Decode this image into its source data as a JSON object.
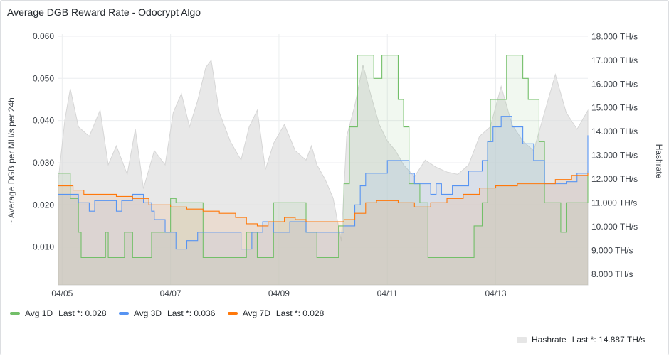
{
  "panel": {
    "title": "Average DGB Reward Rate - Odocrypt Algo"
  },
  "chart_data": {
    "type": "line",
    "title": "Average DGB Reward Rate - Odocrypt Algo",
    "x_ticks": [
      "04/05",
      "04/07",
      "04/09",
      "04/11",
      "04/13"
    ],
    "x_range_days": [
      4.93,
      14.7
    ],
    "y_left": {
      "label": "~ Average DGB per MH/s per 24h",
      "ticks": [
        "0.010",
        "0.020",
        "0.030",
        "0.040",
        "0.050",
        "0.060"
      ],
      "range": [
        0.001,
        0.0605
      ]
    },
    "y_right": {
      "label": "Hashrate",
      "ticks": [
        "8.000 TH/s",
        "9.000 TH/s",
        "10.000 TH/s",
        "11.000 TH/s",
        "12.000 TH/s",
        "13.000 TH/s",
        "14.000 TH/s",
        "15.000 TH/s",
        "16.000 TH/s",
        "17.000 TH/s",
        "18.000 TH/s"
      ],
      "range": [
        7.55,
        18.1
      ]
    },
    "grid": true,
    "series": [
      {
        "name": "Avg 1D",
        "axis": "left",
        "color": "#73bf69",
        "x": [
          4.93,
          5.1,
          5.15,
          5.3,
          5.35,
          5.55,
          5.8,
          5.85,
          6.1,
          6.15,
          6.25,
          6.3,
          6.6,
          6.65,
          7.0,
          7.1,
          7.6,
          7.65,
          8.0,
          8.2,
          8.4,
          8.5,
          8.6,
          8.7,
          8.9,
          9.3,
          9.5,
          9.7,
          9.95,
          10.1,
          10.2,
          10.3,
          10.45,
          10.55,
          10.7,
          10.75,
          10.9,
          11.0,
          11.2,
          11.3,
          11.4,
          11.5,
          11.6,
          11.75,
          12.0,
          12.3,
          12.4,
          12.6,
          12.75,
          12.85,
          12.9,
          13.1,
          13.2,
          13.35,
          13.45,
          13.5,
          13.6,
          13.75,
          13.8,
          13.9,
          14.2,
          14.3,
          14.5,
          14.7
        ],
        "values": [
          0.0275,
          0.0275,
          0.0215,
          0.0135,
          0.0075,
          0.0075,
          0.0135,
          0.0075,
          0.0075,
          0.0135,
          0.0135,
          0.0075,
          0.0075,
          0.0135,
          0.0215,
          0.0205,
          0.0075,
          0.0075,
          0.0075,
          0.0075,
          0.0135,
          0.0135,
          0.0075,
          0.0075,
          0.0205,
          0.0205,
          0.0135,
          0.0075,
          0.0075,
          0.015,
          0.025,
          0.0385,
          0.0555,
          0.0555,
          0.0555,
          0.05,
          0.0555,
          0.0555,
          0.045,
          0.0385,
          0.025,
          0.025,
          0.0205,
          0.0075,
          0.0075,
          0.0075,
          0.0075,
          0.015,
          0.0205,
          0.035,
          0.045,
          0.045,
          0.0555,
          0.0555,
          0.0555,
          0.05,
          0.045,
          0.045,
          0.035,
          0.0205,
          0.0135,
          0.0205,
          0.0205,
          0.028
        ]
      },
      {
        "name": "Avg 3D",
        "axis": "left",
        "color": "#5794f2",
        "x": [
          4.93,
          5.3,
          5.5,
          5.6,
          6.0,
          6.1,
          6.3,
          6.5,
          6.65,
          6.7,
          6.9,
          7.1,
          7.3,
          7.5,
          7.9,
          8.3,
          8.5,
          8.7,
          8.9,
          9.2,
          9.5,
          10.0,
          10.2,
          10.4,
          10.5,
          10.6,
          10.7,
          11.0,
          11.4,
          11.5,
          11.8,
          11.9,
          12.0,
          12.2,
          12.5,
          12.75,
          12.85,
          12.95,
          13.1,
          13.3,
          13.5,
          13.7,
          13.9,
          14.3,
          14.5,
          14.7
        ],
        "values": [
          0.0225,
          0.0205,
          0.0185,
          0.021,
          0.0185,
          0.021,
          0.0225,
          0.0205,
          0.0185,
          0.0165,
          0.0135,
          0.0095,
          0.0115,
          0.0135,
          0.0135,
          0.0095,
          0.0135,
          0.016,
          0.0135,
          0.016,
          0.0135,
          0.0135,
          0.015,
          0.02,
          0.0245,
          0.0275,
          0.0275,
          0.0305,
          0.0275,
          0.025,
          0.0225,
          0.025,
          0.0225,
          0.0245,
          0.028,
          0.0305,
          0.035,
          0.0385,
          0.041,
          0.0385,
          0.0345,
          0.0305,
          0.025,
          0.0255,
          0.0275,
          0.0365
        ]
      },
      {
        "name": "Avg 7D",
        "axis": "left",
        "color": "#ff780a",
        "x": [
          4.93,
          5.2,
          5.4,
          5.7,
          6.0,
          6.3,
          6.6,
          7.0,
          7.3,
          7.6,
          7.9,
          8.2,
          8.4,
          8.6,
          8.8,
          9.1,
          9.3,
          9.5,
          9.8,
          10.0,
          10.2,
          10.4,
          10.6,
          10.8,
          11.0,
          11.2,
          11.5,
          11.8,
          12.1,
          12.4,
          12.7,
          13.0,
          13.4,
          13.8,
          14.1,
          14.4,
          14.7
        ],
        "values": [
          0.0245,
          0.0235,
          0.0225,
          0.0225,
          0.022,
          0.0215,
          0.02,
          0.0195,
          0.019,
          0.0185,
          0.018,
          0.017,
          0.0155,
          0.015,
          0.016,
          0.017,
          0.0165,
          0.016,
          0.016,
          0.016,
          0.0165,
          0.018,
          0.0205,
          0.021,
          0.021,
          0.0205,
          0.0195,
          0.0205,
          0.0215,
          0.0225,
          0.024,
          0.0245,
          0.025,
          0.025,
          0.026,
          0.027,
          0.0275
        ]
      },
      {
        "name": "Hashrate",
        "axis": "right",
        "color": "#e6e6e6",
        "x": [
          4.93,
          5.05,
          5.15,
          5.3,
          5.5,
          5.7,
          5.85,
          6.0,
          6.2,
          6.35,
          6.5,
          6.7,
          6.9,
          7.05,
          7.2,
          7.35,
          7.5,
          7.65,
          7.75,
          7.9,
          8.1,
          8.3,
          8.45,
          8.6,
          8.75,
          8.9,
          9.1,
          9.3,
          9.5,
          9.6,
          9.7,
          9.85,
          10.0,
          10.15,
          10.25,
          10.4,
          10.55,
          10.7,
          10.85,
          11.0,
          11.15,
          11.3,
          11.5,
          11.7,
          11.9,
          12.1,
          12.3,
          12.5,
          12.7,
          12.9,
          13.1,
          13.3,
          13.5,
          13.7,
          13.9,
          14.1,
          14.3,
          14.5,
          14.7
        ],
        "values": [
          12.0,
          14.5,
          15.8,
          14.2,
          13.8,
          14.9,
          12.6,
          13.4,
          12.2,
          14.1,
          11.6,
          13.2,
          12.6,
          14.8,
          15.6,
          14.2,
          15.3,
          16.7,
          17.0,
          14.8,
          13.6,
          12.8,
          14.2,
          14.9,
          12.4,
          13.5,
          14.3,
          13.2,
          12.8,
          13.4,
          12.6,
          12.0,
          11.2,
          9.4,
          13.8,
          15.1,
          16.8,
          15.5,
          14.3,
          13.6,
          13.2,
          12.6,
          12.1,
          12.8,
          12.5,
          12.3,
          12.2,
          12.6,
          13.8,
          14.2,
          15.9,
          14.3,
          13.6,
          13.2,
          14.8,
          16.4,
          14.8,
          14.1,
          14.887
        ]
      }
    ]
  },
  "legend": {
    "items": [
      {
        "name": "Avg 1D",
        "color": "#73bf69",
        "stat": "Last *: 0.028"
      },
      {
        "name": "Avg 3D",
        "color": "#5794f2",
        "stat": "Last *: 0.036"
      },
      {
        "name": "Avg 7D",
        "color": "#ff780a",
        "stat": "Last *: 0.028"
      }
    ],
    "hashrate": {
      "name": "Hashrate",
      "color": "#e6e6e6",
      "stat": "Last *: 14.887 TH/s"
    }
  }
}
